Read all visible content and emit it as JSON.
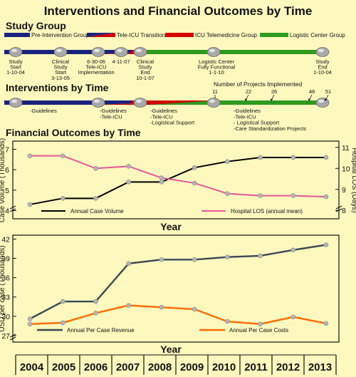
{
  "title": "Interventions and Financial Outcomes by Time",
  "study_group": {
    "heading": "Study Group",
    "legend": [
      {
        "label": "Pre-Intervention Group",
        "color": "#1a237e"
      },
      {
        "label": "Tele-ICU Transition",
        "color": "#1a237e/#d50000"
      },
      {
        "label": "ICU Telemedicine Group",
        "color": "#d50000"
      },
      {
        "label": "Logistic Center Group",
        "color": "#2e9a1e"
      }
    ],
    "milestones": [
      {
        "id": "m1",
        "lines": [
          "Study",
          "Start",
          "1-10-04"
        ]
      },
      {
        "id": "m2",
        "lines": [
          "Clinical",
          "Study",
          "Start",
          "3-13-05"
        ]
      },
      {
        "id": "m3",
        "lines": [
          "6-30-06",
          "Tele-ICU",
          "Implementation"
        ]
      },
      {
        "id": "m4",
        "lines": [
          "4-11-07"
        ]
      },
      {
        "id": "m5",
        "lines": [
          "Clinical",
          "Study",
          "End",
          "10-1-07"
        ]
      },
      {
        "id": "m6",
        "lines": [
          "Logistic Center",
          "Fully Functional",
          "1-1-10"
        ]
      },
      {
        "id": "m7",
        "lines": [
          "Study",
          "End",
          "1-10-04"
        ]
      }
    ]
  },
  "interventions": {
    "heading": "Interventions by Time",
    "projects_label": "Number of Projects Implemented",
    "project_counts": [
      "11",
      "22",
      "26",
      "48",
      "51"
    ],
    "phase_labels": [
      {
        "id": "p1",
        "lines": [
          "-Guidelines"
        ]
      },
      {
        "id": "p2",
        "lines": [
          "-Guidelines",
          "-Tele-ICU"
        ]
      },
      {
        "id": "p3",
        "lines": [
          "-Guidelines",
          "-Tele-ICU",
          "-Logistical Support"
        ]
      },
      {
        "id": "p4",
        "lines": [
          "-Guidelines",
          "-Tele-ICU",
          "- Logistical Support",
          "-Care Standardization Projects"
        ]
      }
    ]
  },
  "financial": {
    "heading": "Financial Outcomes by Time",
    "year_axis_label": "Year"
  },
  "years": [
    "2004",
    "2005",
    "2006",
    "2007",
    "2008",
    "2009",
    "2010",
    "2011",
    "2012",
    "2013"
  ],
  "chart_data": [
    {
      "type": "line",
      "x": [
        2004,
        2005,
        2006,
        2007,
        2008,
        2009,
        2010,
        2011,
        2012,
        2013
      ],
      "xlabel": "Year",
      "ylabel": "Case Volume (Thousands)",
      "ylabel_right": "Hospital LOS (Days)",
      "ylim": [
        3.6,
        7.4
      ],
      "y_ticks": [
        4,
        5,
        6,
        7
      ],
      "ylim_right": [
        7.6,
        11.3
      ],
      "y_ticks_right": [
        8,
        9,
        10,
        11
      ],
      "series": [
        {
          "name": "Annual Case Volume",
          "axis": "left",
          "color": "#000000",
          "values": [
            4.3,
            4.6,
            4.6,
            5.4,
            5.4,
            6.1,
            6.4,
            6.6,
            6.6,
            6.6
          ]
        },
        {
          "name": "Hospital LOS (annual mean)",
          "axis": "right",
          "color": "#e8559a",
          "values": [
            10.6,
            10.6,
            10.0,
            10.1,
            9.55,
            9.3,
            8.8,
            8.7,
            8.7,
            8.65
          ]
        }
      ],
      "grid": false,
      "legend": "bottom"
    },
    {
      "type": "line",
      "x": [
        2004,
        2005,
        2006,
        2007,
        2008,
        2009,
        2010,
        2011,
        2012,
        2013
      ],
      "xlabel": "Year",
      "ylabel": "USD per case (Thousands)",
      "ylim": [
        26,
        42.6
      ],
      "y_ticks": [
        27,
        30,
        33,
        36,
        39,
        42
      ],
      "series": [
        {
          "name": "Annual Per Case Revenue",
          "color": "#3b4753",
          "values": [
            29.6,
            32.3,
            32.3,
            38.2,
            38.8,
            38.8,
            39.2,
            39.4,
            40.3,
            41.1
          ]
        },
        {
          "name": "Annual Per Case Costs",
          "color": "#ff6a00",
          "values": [
            28.8,
            29.0,
            30.5,
            31.7,
            31.4,
            31.1,
            29.2,
            28.8,
            29.9,
            28.9
          ]
        }
      ],
      "grid": false,
      "legend": "bottom"
    }
  ]
}
